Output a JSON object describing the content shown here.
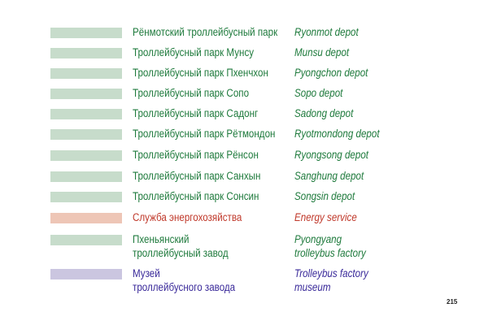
{
  "rows": [
    {
      "ru": [
        "Рёнмотский троллейбусный парк"
      ],
      "en": [
        "Ryonmot depot"
      ],
      "color": "green"
    },
    {
      "ru": [
        "Троллейбусный парк Мунсу"
      ],
      "en": [
        "Munsu depot"
      ],
      "color": "green"
    },
    {
      "ru": [
        "Троллейбусный парк Пхенчхон"
      ],
      "en": [
        "Pyongchon depot"
      ],
      "color": "green"
    },
    {
      "ru": [
        "Троллейбусный парк Сопо"
      ],
      "en": [
        "Sopo depot"
      ],
      "color": "green"
    },
    {
      "ru": [
        "Троллейбусный парк Садонг"
      ],
      "en": [
        "Sadong depot"
      ],
      "color": "green"
    },
    {
      "ru": [
        "Троллейбусный парк Рётмондон"
      ],
      "en": [
        "Ryotmondong depot"
      ],
      "color": "green"
    },
    {
      "ru": [
        "Троллейбусный парк Рёнсон"
      ],
      "en": [
        "Ryongsong depot"
      ],
      "color": "green"
    },
    {
      "ru": [
        "Троллейбусный парк Санхын"
      ],
      "en": [
        "Sanghung depot"
      ],
      "color": "green"
    },
    {
      "ru": [
        "Троллейбусный парк Сонсин"
      ],
      "en": [
        "Songsin depot"
      ],
      "color": "green"
    },
    {
      "ru": [
        "Служба энергохозяйства"
      ],
      "en": [
        "Energy service"
      ],
      "color": "red"
    },
    {
      "ru": [
        "Пхеньянский",
        "троллейбусный завод"
      ],
      "en": [
        "Pyongyang",
        "trolleybus factory"
      ],
      "color": "green"
    },
    {
      "ru": [
        "Музей",
        "троллейбусного завода"
      ],
      "en": [
        "Trolleybus factory",
        "museum"
      ],
      "color": "purple"
    }
  ],
  "colors": {
    "green_text": "#1e7a3c",
    "green_swatch": "#c7dccb",
    "red_text": "#c0392b",
    "red_swatch": "#eec6b6",
    "purple_text": "#3a2a9a",
    "purple_swatch": "#cbc6e0"
  },
  "page_number": "215"
}
